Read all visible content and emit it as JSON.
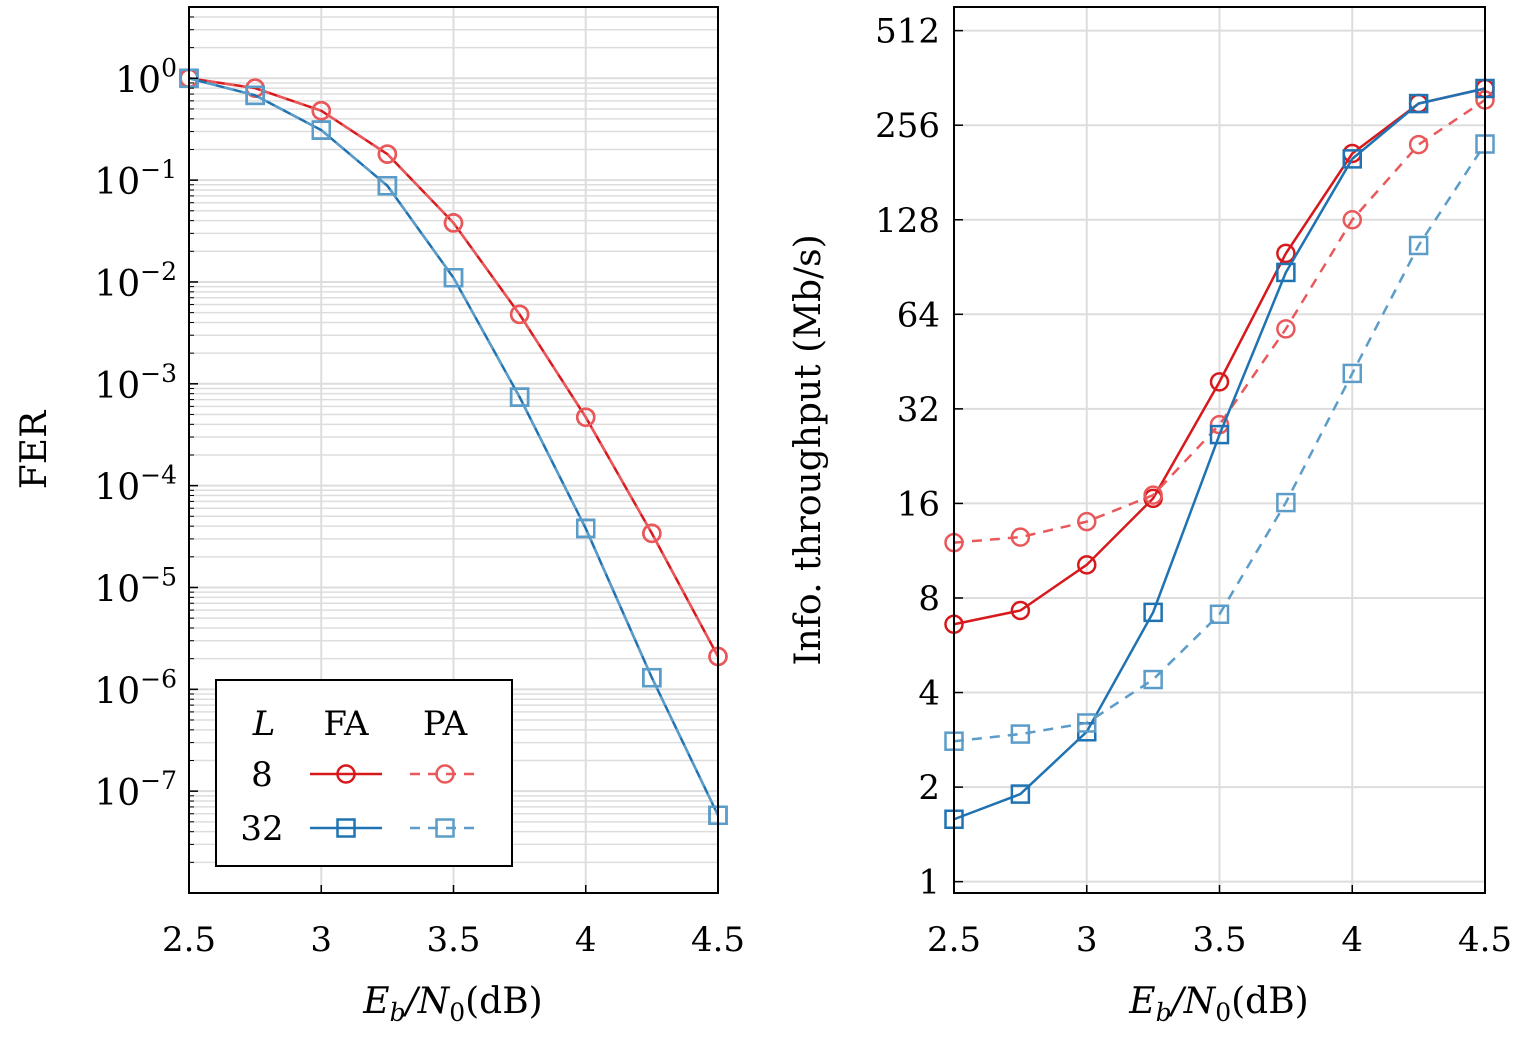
{
  "colors": {
    "red": "#d7191c",
    "red_light": "#e9595b",
    "blue": "#1f73b2",
    "blue_light": "#5b9cc8",
    "grid": "#dddddd",
    "axis": "#000000"
  },
  "chart_data": [
    {
      "type": "line",
      "ylabel": "FER",
      "xlabel": {
        "E": "E",
        "b": "b",
        "slash": "/N",
        "zero": "0",
        "unit": "(dB)"
      },
      "yscale": "log",
      "xlim": [
        2.5,
        4.5
      ],
      "ylim_exp": [
        -8.0,
        0.7
      ],
      "grid": true,
      "xticks": [
        "2.5",
        "3",
        "3.5",
        "4",
        "4.5"
      ],
      "xtick_values": [
        2.5,
        3,
        3.5,
        4,
        4.5
      ],
      "yticks": [
        {
          "base": "10",
          "exp": "0",
          "value_exp": 0
        },
        {
          "base": "10",
          "exp": "−1",
          "value_exp": -1
        },
        {
          "base": "10",
          "exp": "−2",
          "value_exp": -2
        },
        {
          "base": "10",
          "exp": "−3",
          "value_exp": -3
        },
        {
          "base": "10",
          "exp": "−4",
          "value_exp": -4
        },
        {
          "base": "10",
          "exp": "−5",
          "value_exp": -5
        },
        {
          "base": "10",
          "exp": "−6",
          "value_exp": -6
        },
        {
          "base": "10",
          "exp": "−7",
          "value_exp": -7
        }
      ],
      "x": [
        2.5,
        2.75,
        3.0,
        3.25,
        3.5,
        3.75,
        4.0,
        4.25,
        4.5
      ],
      "series": [
        {
          "name": "L=8 FA",
          "color_key": "red",
          "dash": false,
          "marker": "circle",
          "values": [
            1.0,
            0.8,
            0.48,
            0.18,
            0.038,
            0.0048,
            0.00047,
            3.4e-05,
            2.1e-06
          ]
        },
        {
          "name": "L=8 PA",
          "color_key": "red_light",
          "dash": true,
          "marker": "circle",
          "values": [
            1.0,
            0.8,
            0.48,
            0.18,
            0.038,
            0.0048,
            0.00047,
            3.4e-05,
            2.1e-06
          ]
        },
        {
          "name": "L=32 FA",
          "color_key": "blue",
          "dash": false,
          "marker": "square",
          "values": [
            1.0,
            0.68,
            0.31,
            0.088,
            0.011,
            0.00074,
            3.8e-05,
            1.3e-06,
            5.8e-08
          ]
        },
        {
          "name": "L=32 PA",
          "color_key": "blue_light",
          "dash": true,
          "marker": "square",
          "values": [
            1.0,
            0.68,
            0.31,
            0.088,
            0.011,
            0.00074,
            3.8e-05,
            1.3e-06,
            5.8e-08
          ]
        }
      ],
      "legend": {
        "placement": "bottom-left",
        "header_L": "L",
        "header_fa": "FA",
        "header_pa": "PA",
        "rows": [
          {
            "label": "8",
            "fa_color": "red",
            "pa_color": "red_light",
            "marker": "circle"
          },
          {
            "label": "32",
            "fa_color": "blue",
            "pa_color": "blue_light",
            "marker": "square"
          }
        ]
      }
    },
    {
      "type": "line",
      "ylabel": "Info. throughput (Mb/s)",
      "xlabel": {
        "E": "E",
        "b": "b",
        "slash": "/N",
        "zero": "0",
        "unit": "(dB)"
      },
      "yscale": "log2",
      "xlim": [
        2.5,
        4.5
      ],
      "ylim_log2": [
        -0.12,
        9.25
      ],
      "grid": true,
      "xticks": [
        "2.5",
        "3",
        "3.5",
        "4",
        "4.5"
      ],
      "xtick_values": [
        2.5,
        3,
        3.5,
        4,
        4.5
      ],
      "yticks": [
        "1",
        "2",
        "4",
        "8",
        "16",
        "32",
        "64",
        "128",
        "256",
        "512"
      ],
      "ytick_values": [
        1,
        2,
        4,
        8,
        16,
        32,
        64,
        128,
        256,
        512
      ],
      "x": [
        2.5,
        2.75,
        3.0,
        3.25,
        3.5,
        3.75,
        4.0,
        4.25,
        4.5
      ],
      "series": [
        {
          "name": "L=8 FA",
          "color_key": "red",
          "dash": false,
          "marker": "circle",
          "values": [
            6.6,
            7.3,
            10.2,
            16.6,
            39,
            100,
            208,
            300,
            335
          ]
        },
        {
          "name": "L=8 PA",
          "color_key": "red_light",
          "dash": true,
          "marker": "circle",
          "values": [
            12.0,
            12.5,
            14.0,
            17.0,
            28.5,
            57.5,
            128,
            222,
            308
          ]
        },
        {
          "name": "L=32 FA",
          "color_key": "blue",
          "dash": false,
          "marker": "square",
          "values": [
            1.58,
            1.9,
            3.0,
            7.2,
            26.5,
            87,
            200,
            300,
            335
          ]
        },
        {
          "name": "L=32 PA",
          "color_key": "blue_light",
          "dash": true,
          "marker": "square",
          "values": [
            2.8,
            2.95,
            3.2,
            4.4,
            7.1,
            16.1,
            41.5,
            106,
            223
          ]
        }
      ]
    }
  ]
}
